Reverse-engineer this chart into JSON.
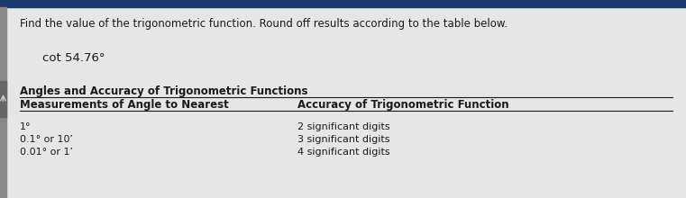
{
  "bg_color": "#c8c8c8",
  "top_bar_color": "#1a3a6b",
  "left_bar_color": "#555555",
  "panel_color": "#e8e8e8",
  "title_text": "Find the value of the trigonometric function. Round off results according to the table below.",
  "formula_text": "cot 54.76°",
  "table_title": "Angles and Accuracy of Trigonometric Functions",
  "col1_header": "Measurements of Angle to Nearest",
  "col2_header": "Accuracy of Trigonometric Function",
  "rows": [
    [
      "1°",
      "2 significant digits"
    ],
    [
      "0.1° or 10’",
      "3 significant digits"
    ],
    [
      "0.01° or 1’",
      "4 significant digits"
    ]
  ],
  "font_color": "#1a1a1a",
  "title_fontsize": 8.5,
  "formula_fontsize": 9.5,
  "table_title_fontsize": 8.5,
  "header_fontsize": 8.5,
  "row_fontsize": 8.0,
  "figsize": [
    7.61,
    2.2
  ],
  "dpi": 100
}
